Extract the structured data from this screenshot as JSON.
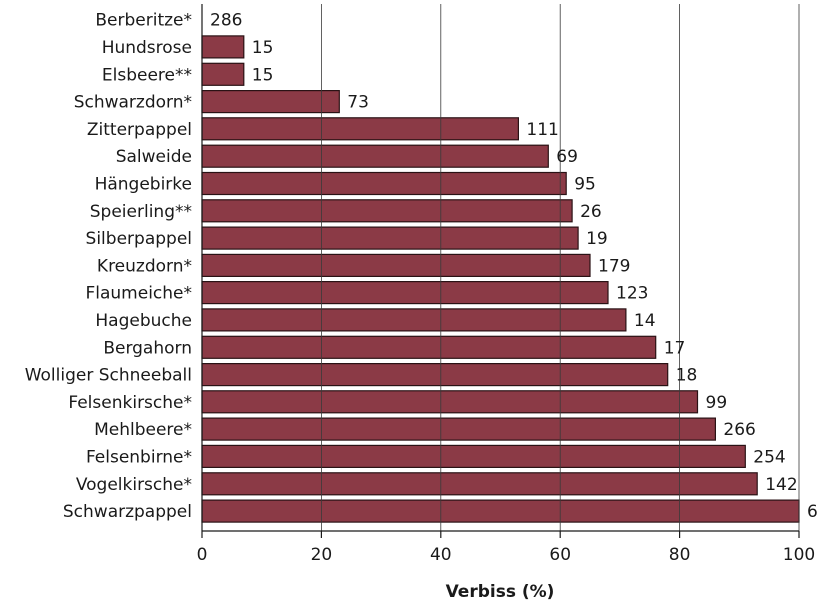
{
  "chart_data": {
    "type": "bar",
    "orientation": "horizontal",
    "xlabel": "Verbiss (%)",
    "xlim": [
      0,
      100
    ],
    "xticks": [
      0,
      20,
      40,
      60,
      80,
      100
    ],
    "grid": "vertical lines at x ticks",
    "bar_color": "#8b3a46",
    "bar_border_color": "#2a1215",
    "categories": [
      "Berberitze*",
      "Hundsrose",
      "Elsbeere**",
      "Schwarzdorn*",
      "Zitterpappel",
      "Salweide",
      "Hängebirke",
      "Speierling**",
      "Silberpappel",
      "Kreuzdorn*",
      "Flaumeiche*",
      "Hagebuche",
      "Bergahorn",
      "Wolliger Schneeball",
      "Felsenkirsche*",
      "Mehlbeere*",
      "Felsenbirne*",
      "Vogelkirsche*",
      "Schwarzpappel"
    ],
    "values": [
      0,
      7,
      7,
      23,
      53,
      58,
      61,
      62,
      63,
      65,
      68,
      71,
      76,
      78,
      83,
      86,
      91,
      93,
      100
    ],
    "sample_sizes": [
      "286",
      "15",
      "15",
      "73",
      "111",
      "69",
      "95",
      "26",
      "19",
      "179",
      "123",
      "14",
      "17",
      "18",
      "99",
      "266",
      "254",
      "142",
      "6"
    ]
  }
}
